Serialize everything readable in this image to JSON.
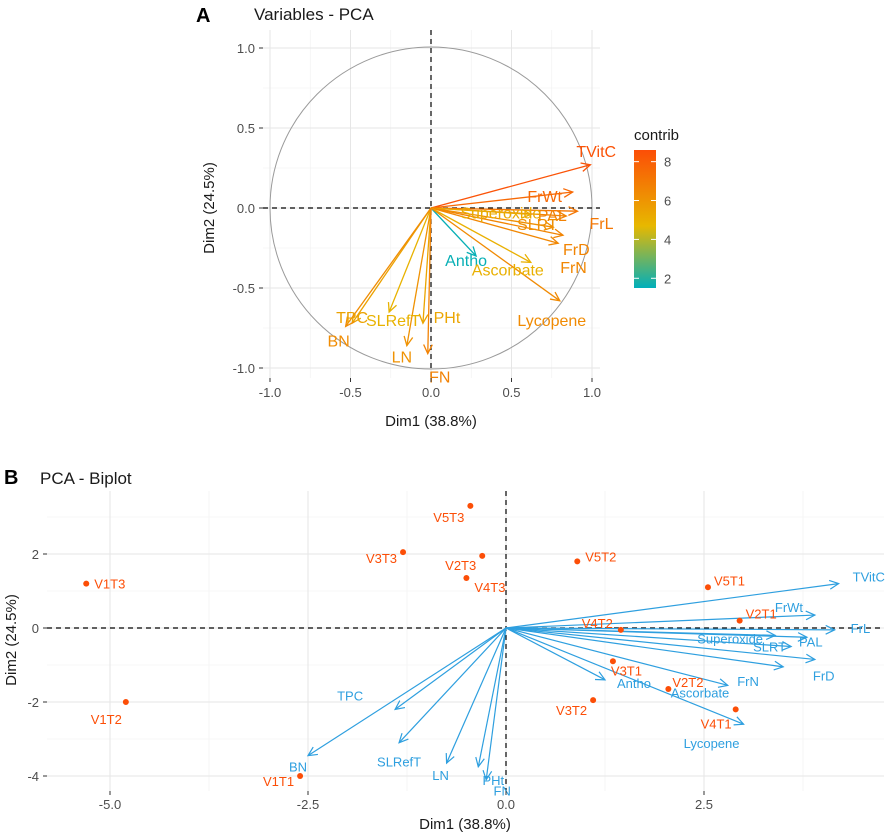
{
  "panel_a": {
    "letter": "A",
    "chart_data": {
      "type": "scatter",
      "subtype": "pca-variable-correlation-circle",
      "title": "Variables - PCA",
      "xlabel": "Dim1 (38.8%)",
      "ylabel": "Dim2 (24.5%)",
      "xlim": [
        -1.0,
        1.0
      ],
      "ylim": [
        -1.0,
        1.0
      ],
      "xticks": [
        -1.0,
        -0.5,
        0.0,
        0.5,
        1.0
      ],
      "yticks": [
        -1.0,
        -0.5,
        0.0,
        0.5,
        1.0
      ],
      "xtick_labels": [
        "-1.0",
        "-0.5",
        "0.0",
        "0.5",
        "1.0"
      ],
      "ytick_labels": [
        "-1.0",
        "-0.5",
        "0.0",
        "0.5",
        "1.0"
      ],
      "grid": true,
      "legend": {
        "title": "contrib",
        "ticks": [
          2,
          4,
          6,
          8
        ],
        "tick_labels": [
          "2",
          "4",
          "6",
          "8"
        ],
        "range": [
          1.5,
          8.6
        ],
        "colors": [
          "#00AFBB",
          "#E7B800",
          "#FC4E07"
        ],
        "placement": "right"
      },
      "variables": [
        {
          "name": "TVitC",
          "x": 0.99,
          "y": 0.27,
          "contrib": 8.4
        },
        {
          "name": "FrWt",
          "x": 0.88,
          "y": 0.1,
          "contrib": 7.6
        },
        {
          "name": "FrL",
          "x": 0.91,
          "y": -0.02,
          "contrib": 7.1
        },
        {
          "name": "PAL",
          "x": 0.84,
          "y": -0.05,
          "contrib": 6.7
        },
        {
          "name": "Superoxide",
          "x": 0.62,
          "y": -0.04,
          "contrib": 5.2
        },
        {
          "name": "SLRT",
          "x": 0.76,
          "y": -0.12,
          "contrib": 6.2
        },
        {
          "name": "FrD",
          "x": 0.82,
          "y": -0.17,
          "contrib": 6.6
        },
        {
          "name": "FrN",
          "x": 0.79,
          "y": -0.22,
          "contrib": 6.5
        },
        {
          "name": "Antho",
          "x": 0.28,
          "y": -0.3,
          "contrib": 1.6
        },
        {
          "name": "Ascorbate",
          "x": 0.62,
          "y": -0.34,
          "contrib": 5.0
        },
        {
          "name": "Lycopene",
          "x": 0.8,
          "y": -0.58,
          "contrib": 6.4
        },
        {
          "name": "SLRefT",
          "x": -0.26,
          "y": -0.65,
          "contrib": 4.9
        },
        {
          "name": "TPC",
          "x": -0.49,
          "y": -0.72,
          "contrib": 5.5
        },
        {
          "name": "BN",
          "x": -0.53,
          "y": -0.74,
          "contrib": 6.3
        },
        {
          "name": "PHt",
          "x": -0.05,
          "y": -0.72,
          "contrib": 5.4
        },
        {
          "name": "LN",
          "x": -0.15,
          "y": -0.86,
          "contrib": 6.1
        },
        {
          "name": "FN",
          "x": -0.02,
          "y": -0.91,
          "contrib": 6.7
        }
      ]
    }
  },
  "panel_b": {
    "letter": "B",
    "chart_data": {
      "type": "scatter",
      "subtype": "pca-biplot",
      "title": "PCA - Biplot",
      "xlabel": "Dim1 (38.8%)",
      "ylabel": "Dim2 (24.5%)",
      "xlim": [
        -6.0,
        4.9
      ],
      "ylim": [
        -4.6,
        3.6
      ],
      "xticks": [
        -5.0,
        -2.5,
        0.0,
        2.5
      ],
      "yticks": [
        -4,
        -2,
        0,
        2
      ],
      "xtick_labels": [
        "-5.0",
        "-2.5",
        "0.0",
        "2.5"
      ],
      "ytick_labels": [
        "-4",
        "-2",
        "0",
        "2"
      ],
      "grid": true,
      "individual_color": "#FC4E07",
      "variable_color": "#2E9FDF",
      "individuals": [
        {
          "name": "V1T3",
          "x": -5.3,
          "y": 1.2
        },
        {
          "name": "V1T2",
          "x": -4.8,
          "y": -2.0
        },
        {
          "name": "V1T1",
          "x": -2.6,
          "y": -4.0
        },
        {
          "name": "V5T3",
          "x": -0.45,
          "y": 3.3
        },
        {
          "name": "V3T3",
          "x": -1.3,
          "y": 2.05
        },
        {
          "name": "V2T3",
          "x": -0.3,
          "y": 1.95
        },
        {
          "name": "V4T3",
          "x": -0.5,
          "y": 1.35
        },
        {
          "name": "V5T2",
          "x": 0.9,
          "y": 1.8
        },
        {
          "name": "V4T2",
          "x": 1.45,
          "y": -0.05
        },
        {
          "name": "V3T1",
          "x": 1.35,
          "y": -0.9
        },
        {
          "name": "V3T2",
          "x": 1.1,
          "y": -1.95
        },
        {
          "name": "V2T2",
          "x": 2.05,
          "y": -1.65
        },
        {
          "name": "V5T1",
          "x": 2.55,
          "y": 1.1
        },
        {
          "name": "V2T1",
          "x": 2.95,
          "y": 0.2
        },
        {
          "name": "V4T1",
          "x": 2.9,
          "y": -2.2
        }
      ],
      "variables": [
        {
          "name": "TVitC",
          "x": 4.2,
          "y": 1.2
        },
        {
          "name": "FrWt",
          "x": 3.9,
          "y": 0.35
        },
        {
          "name": "FrL",
          "x": 4.15,
          "y": -0.05
        },
        {
          "name": "PAL",
          "x": 3.8,
          "y": -0.25
        },
        {
          "name": "Superoxide",
          "x": 3.4,
          "y": -0.2
        },
        {
          "name": "SLRT",
          "x": 3.6,
          "y": -0.5
        },
        {
          "name": "FrD",
          "x": 3.9,
          "y": -0.85
        },
        {
          "name": "FrN",
          "x": 3.5,
          "y": -1.05
        },
        {
          "name": "Antho",
          "x": 1.25,
          "y": -1.4
        },
        {
          "name": "Ascorbate",
          "x": 2.8,
          "y": -1.55
        },
        {
          "name": "Lycopene",
          "x": 3.0,
          "y": -2.6
        },
        {
          "name": "TPC",
          "x": -1.4,
          "y": -2.2
        },
        {
          "name": "BN",
          "x": -2.5,
          "y": -3.45
        },
        {
          "name": "SLRefT",
          "x": -1.35,
          "y": -3.1
        },
        {
          "name": "LN",
          "x": -0.75,
          "y": -3.65
        },
        {
          "name": "PHt",
          "x": -0.35,
          "y": -3.75
        },
        {
          "name": "FN",
          "x": -0.25,
          "y": -4.1
        }
      ]
    }
  }
}
